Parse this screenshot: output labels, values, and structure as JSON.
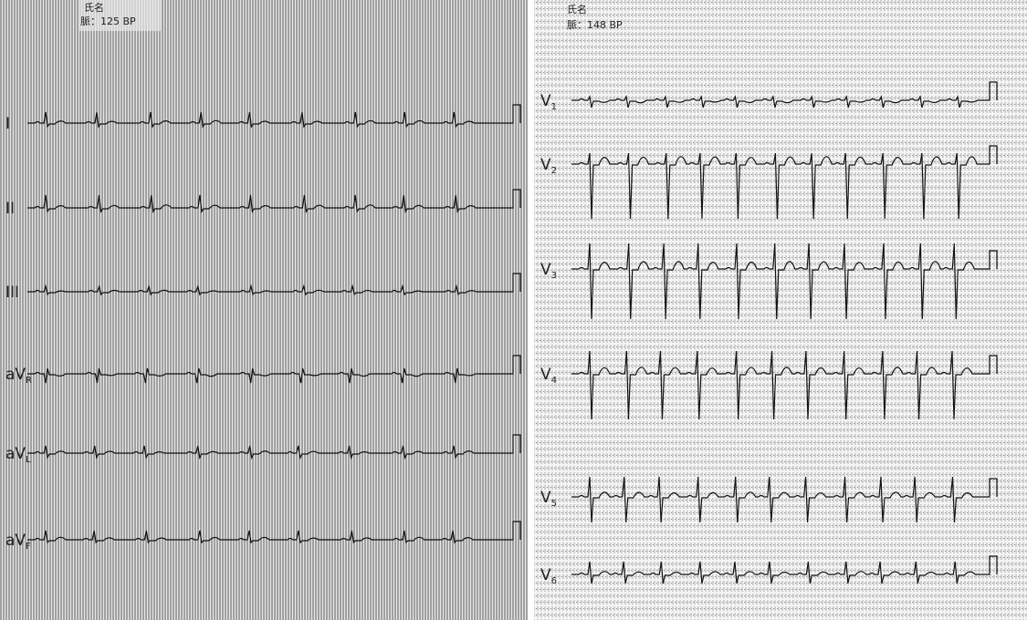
{
  "left_panel": {
    "header": {
      "name_label": "氏名",
      "rate_label": "脈：125 BP"
    },
    "leads": [
      {
        "main": "I"
      },
      {
        "main": "II"
      },
      {
        "main": "III"
      },
      {
        "main": "aV",
        "sub": "R"
      },
      {
        "main": "aV",
        "sub": "L"
      },
      {
        "main": "aV",
        "sub": "F"
      }
    ]
  },
  "right_panel": {
    "header": {
      "name_label": "氏名",
      "rate_label": "脈：148 BP"
    },
    "leads": [
      {
        "main": "V",
        "sub": "1"
      },
      {
        "main": "V",
        "sub": "2"
      },
      {
        "main": "V",
        "sub": "3"
      },
      {
        "main": "V",
        "sub": "4"
      },
      {
        "main": "V",
        "sub": "5"
      },
      {
        "main": "V",
        "sub": "6"
      }
    ]
  }
}
